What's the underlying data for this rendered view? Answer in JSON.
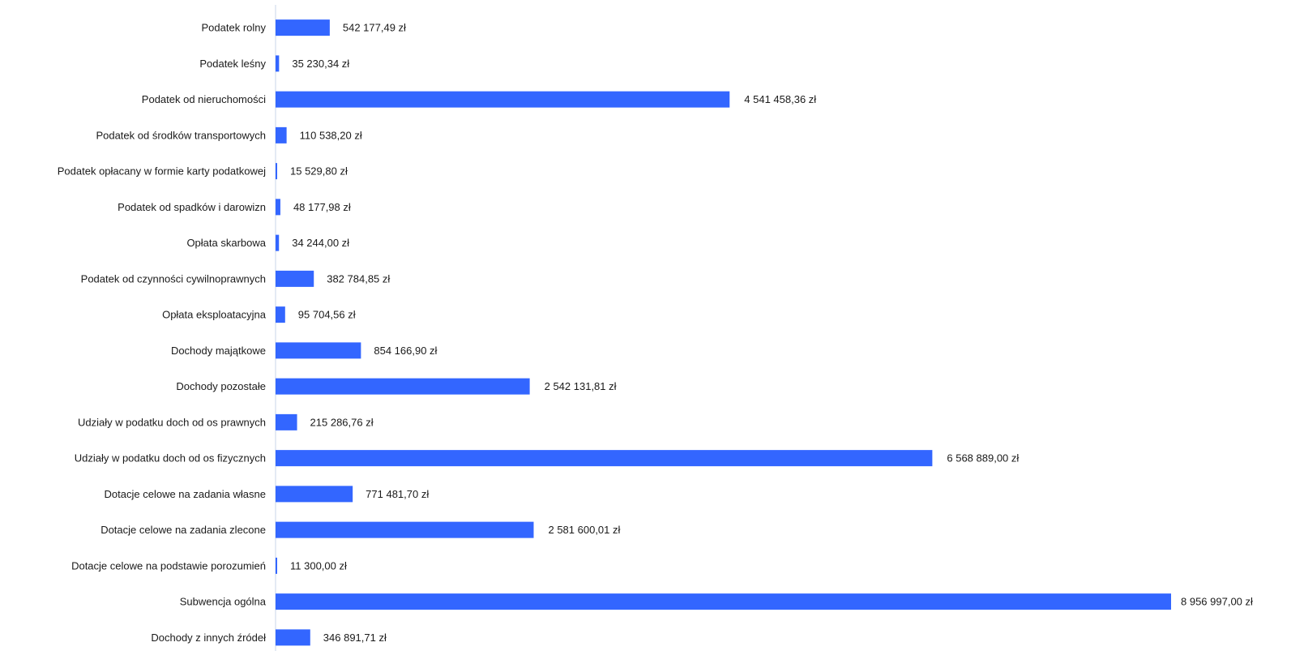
{
  "colors": {
    "bar": "#3366ff",
    "axis": "#c8d4e8",
    "text": "#1a1a1a"
  },
  "chart_data": {
    "type": "bar",
    "orientation": "horizontal",
    "title": "",
    "xlabel": "",
    "ylabel": "",
    "xlim": [
      0,
      8956997
    ],
    "grid": false,
    "legend": "none",
    "categories": [
      "Podatek rolny",
      "Podatek leśny",
      "Podatek od nieruchomości",
      "Podatek od środków transportowych",
      "Podatek opłacany w formie karty podatkowej",
      "Podatek od spadków i darowizn",
      "Opłata skarbowa",
      "Podatek od czynności cywilnoprawnych",
      "Opłata eksploatacyjna",
      "Dochody majątkowe",
      "Dochody pozostałe",
      "Udziały w podatku doch od os prawnych",
      "Udziały w podatku doch od os fizycznych",
      "Dotacje celowe na zadania własne",
      "Dotacje celowe na zadania zlecone",
      "Dotacje celowe na podstawie porozumień",
      "Subwencja ogólna",
      "Dochody z innych źródeł"
    ],
    "values": [
      542177.49,
      35230.34,
      4541458.36,
      110538.2,
      15529.8,
      48177.98,
      34244.0,
      382784.85,
      95704.56,
      854166.9,
      2542131.81,
      215286.76,
      6568889.0,
      771481.7,
      2581600.01,
      11300.0,
      8956997.0,
      346891.71
    ],
    "data_labels": [
      "542 177,49 zł",
      "35 230,34 zł",
      "4 541 458,36 zł",
      "110 538,20 zł",
      "15 529,80 zł",
      "48 177,98 zł",
      "34 244,00 zł",
      "382 784,85 zł",
      "95 704,56 zł",
      "854 166,90 zł",
      "2 542 131,81 zł",
      "215 286,76 zł",
      "6 568 889,00 zł",
      "771 481,70 zł",
      "2 581 600,01 zł",
      "11 300,00 zł",
      "8 956 997,00 zł",
      "346 891,71 zł"
    ]
  }
}
